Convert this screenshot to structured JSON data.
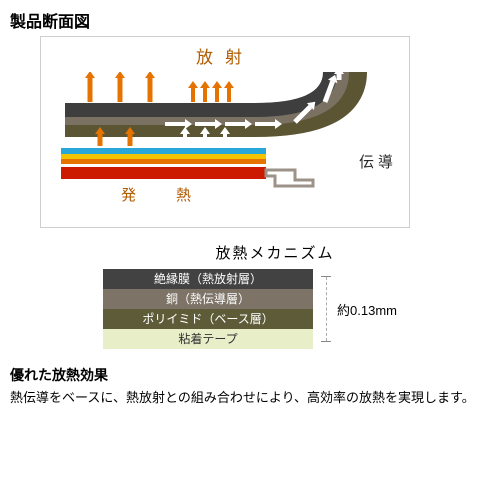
{
  "title": "製品断面図",
  "diagram": {
    "radiate_label": "放射",
    "heat_label": "発熱",
    "conduct_label": "伝導",
    "radiate_arrow_color": "#e67300",
    "conduct_arrow_color": "#ffffff",
    "top_layer_color": "#3e3e3e",
    "mid_layer_color": "#7a7162",
    "curve_outer_color": "#5b5533",
    "blue_layer_color": "#29a7d9",
    "yellow_layer_color": "#f5c400",
    "orange_layer_color": "#e67300",
    "red_heat_color": "#cc1a00",
    "mount_color": "#9c9288",
    "radiate_label_color": "#b05a00",
    "heat_label_color": "#b05a00",
    "conduct_label_color": "#2a2a2a",
    "border_color": "#cecece"
  },
  "mechanism": {
    "title": "放熱メカニズム",
    "layers": [
      {
        "label": "絶縁膜（熱放射層）",
        "bg": "#424242",
        "fg": "#ffffff",
        "h": 20
      },
      {
        "label": "銅（熱伝導層）",
        "bg": "#7d7366",
        "fg": "#ffffff",
        "h": 20
      },
      {
        "label": "ポリイミド（ベース層）",
        "bg": "#5e5c38",
        "fg": "#ffffff",
        "h": 20
      },
      {
        "label": "粘着テープ",
        "bg": "#e8eec8",
        "fg": "#333333",
        "h": 20
      }
    ],
    "dimension": "約0.13mm"
  },
  "effect": {
    "subtitle": "優れた放熱効果",
    "desc": "熱伝導をベースに、熱放射との組み合わせにより、高効率の放熱を実現します。"
  }
}
